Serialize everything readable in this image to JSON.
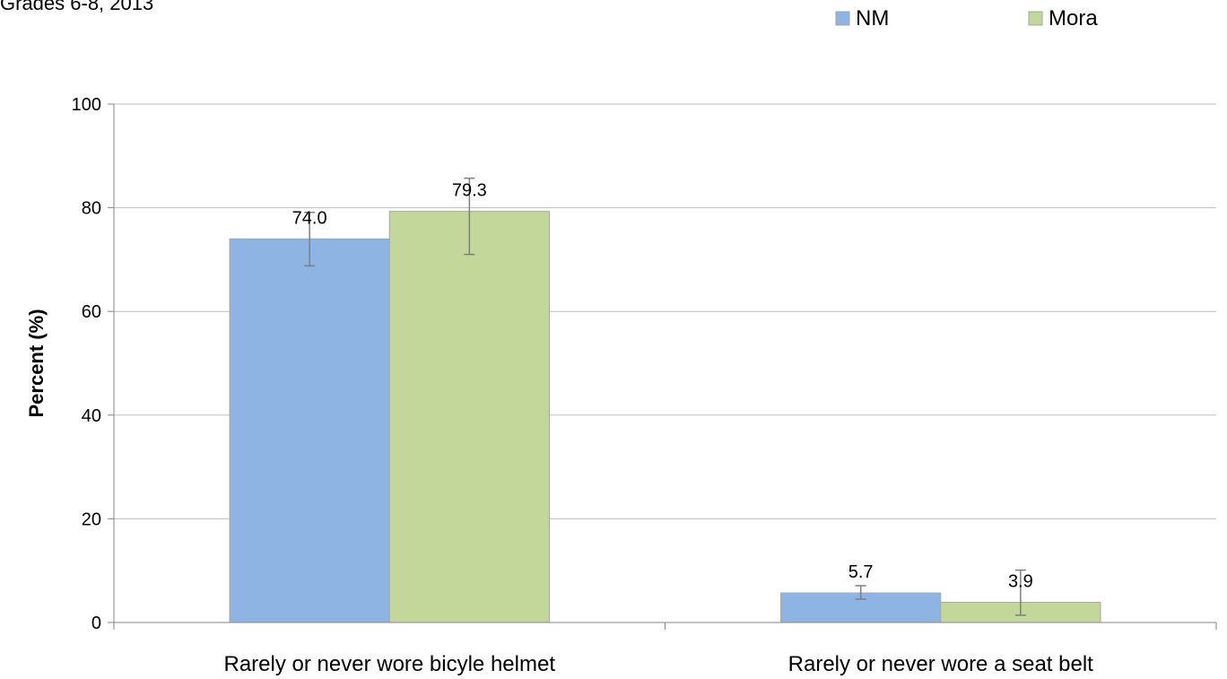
{
  "subtitle": "Grades 6-8, 2013",
  "colors": {
    "NM": "#8EB4E3",
    "Mora": "#C4D79B",
    "grid": "#BFBFBF",
    "axis": "#868686",
    "bar_border": "#A6A6A6",
    "error_bar": "#7F7F7F"
  },
  "chart_data": {
    "type": "bar",
    "categories": [
      "Rarely or never wore bicyle helmet",
      "Rarely or never wore a seat belt"
    ],
    "series": [
      {
        "name": "NM",
        "values": [
          74.0,
          5.7
        ],
        "error_low": [
          68.8,
          4.5
        ],
        "error_high": [
          79.1,
          7.1
        ]
      },
      {
        "name": "Mora",
        "values": [
          79.3,
          3.9
        ],
        "error_low": [
          71.0,
          1.4
        ],
        "error_high": [
          85.7,
          10.1
        ]
      }
    ],
    "data_labels": [
      [
        "74.0",
        "5.7"
      ],
      [
        "79.3",
        "3.9"
      ]
    ],
    "ylabel": "Percent (%)",
    "xlabel": "",
    "ylim": [
      0,
      100
    ],
    "yticks": [
      0,
      20,
      40,
      60,
      80,
      100
    ],
    "ytick_labels": [
      "0",
      "20",
      "40",
      "60",
      "80",
      "100"
    ],
    "grid": true,
    "legend_position": "top-right"
  }
}
